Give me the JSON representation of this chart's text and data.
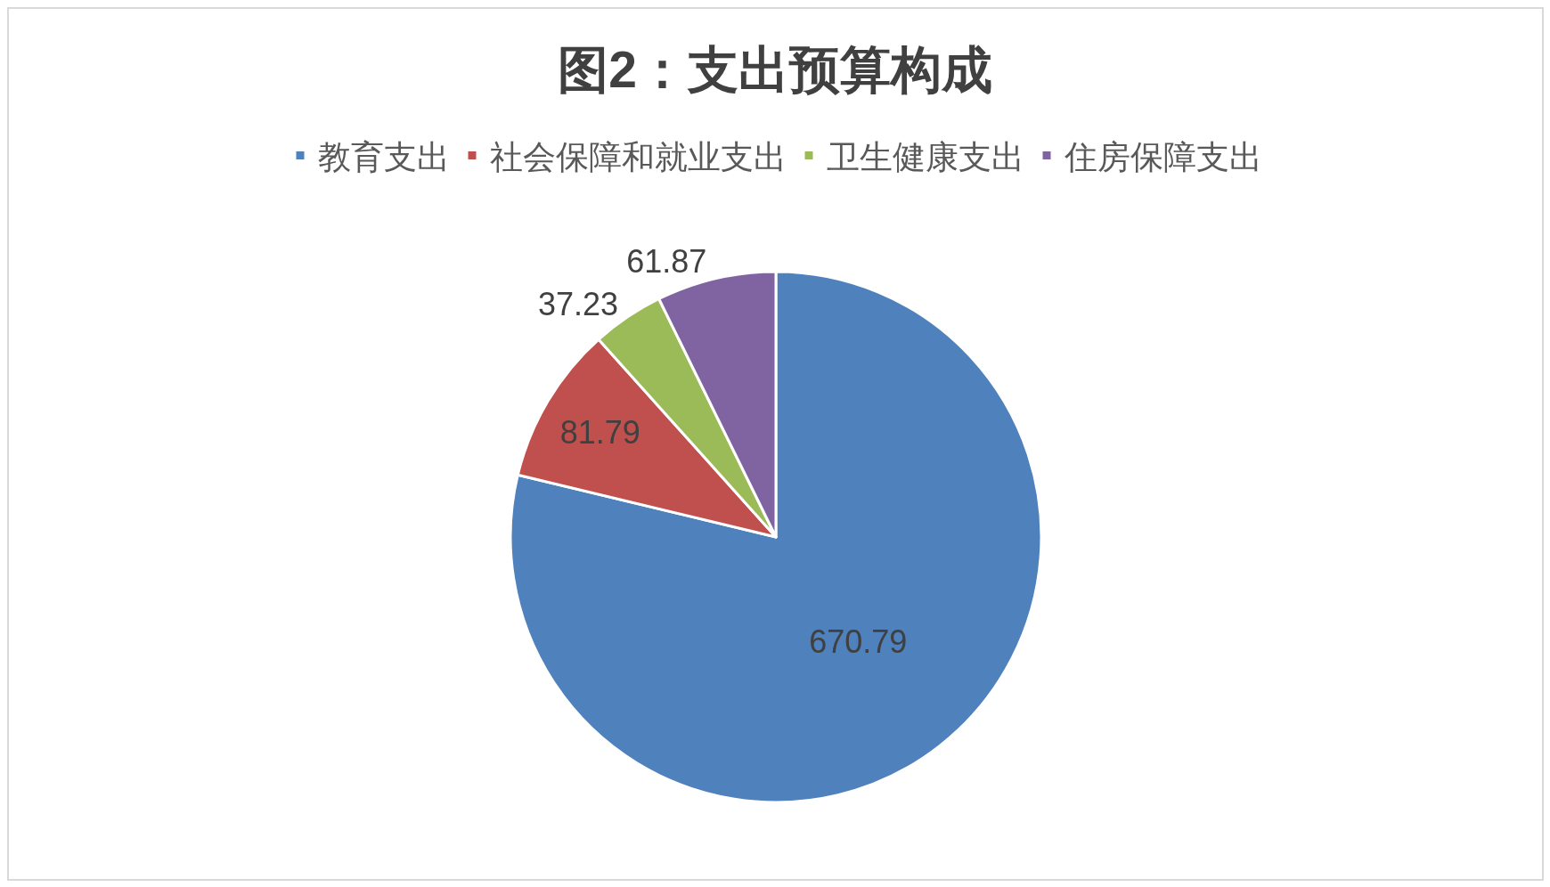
{
  "chart_data": {
    "type": "pie",
    "title": "图2：支出预算构成",
    "categories": [
      "教育支出",
      "社会保障和就业支出",
      "卫生健康支出",
      "住房保障支出"
    ],
    "values": [
      670.79,
      81.79,
      37.23,
      61.87
    ],
    "colors": [
      "#4f81bd",
      "#c0504d",
      "#9bbb59",
      "#8064a2"
    ],
    "data_labels": true,
    "legend": "top"
  }
}
